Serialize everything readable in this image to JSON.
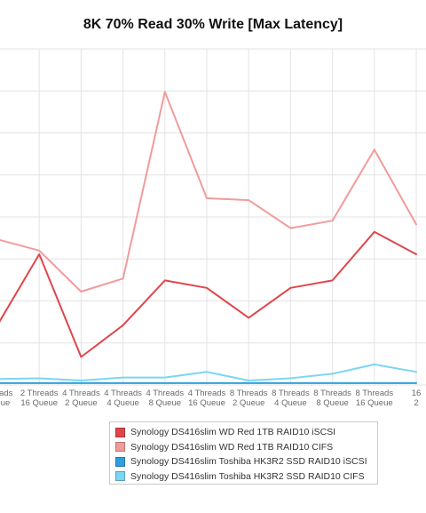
{
  "chart_data": {
    "type": "line",
    "title": "8K 70% Read 30% Write [Max Latency]",
    "xlabel": "",
    "ylabel": "",
    "grid": true,
    "legend_position": "bottom",
    "categories": [
      [
        "Threads",
        "Queue"
      ],
      [
        "2 Threads",
        "16 Queue"
      ],
      [
        "4 Threads",
        "2 Queue"
      ],
      [
        "4 Threads",
        "4 Queue"
      ],
      [
        "4 Threads",
        "8 Queue"
      ],
      [
        "4 Threads",
        "16 Queue"
      ],
      [
        "8 Threads",
        "2 Queue"
      ],
      [
        "8 Threads",
        "4 Queue"
      ],
      [
        "8 Threads",
        "8 Queue"
      ],
      [
        "8 Threads",
        "16 Queue"
      ],
      [
        "16",
        "2"
      ]
    ],
    "ylim": [
      0,
      9
    ],
    "series": [
      {
        "name": "Synology DS416slim WD Red 1TB RAID10 iSCSI",
        "color": "#e0464b",
        "values": [
          1.6,
          3.5,
          0.75,
          1.6,
          2.8,
          2.6,
          1.8,
          2.6,
          2.8,
          4.1,
          3.5
        ]
      },
      {
        "name": "Synology DS416slim WD Red 1TB RAID10 CIFS",
        "color": "#f29b9b",
        "values": [
          3.9,
          3.6,
          2.5,
          2.85,
          7.85,
          5.0,
          4.95,
          4.2,
          4.4,
          6.3,
          4.3
        ]
      },
      {
        "name": "Synology DS416slim Toshiba HK3R2 SSD RAID10 iSCSI",
        "color": "#2f9fe0",
        "values": [
          0.05,
          0.05,
          0.05,
          0.05,
          0.05,
          0.05,
          0.05,
          0.05,
          0.05,
          0.05,
          0.05
        ]
      },
      {
        "name": "Synology DS416slim Toshiba HK3R2 SSD RAID10 CIFS",
        "color": "#7ad6f2",
        "values": [
          0.16,
          0.18,
          0.12,
          0.2,
          0.2,
          0.35,
          0.12,
          0.18,
          0.3,
          0.55,
          0.35
        ]
      }
    ]
  }
}
